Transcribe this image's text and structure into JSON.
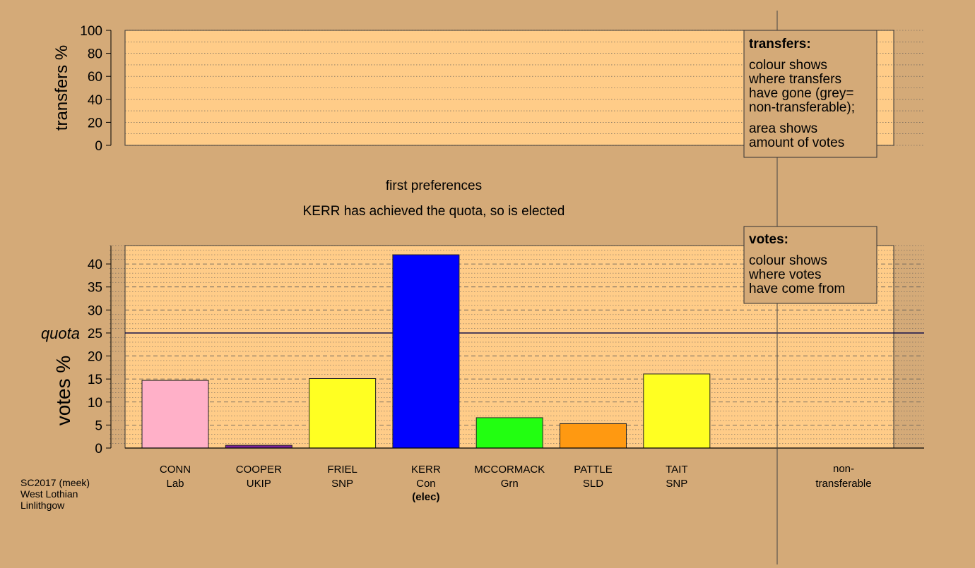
{
  "chart_data": {
    "type": "bar",
    "title": "first preferences",
    "subtitle": "KERR has achieved the quota, so is elected",
    "colors": {
      "background": "#d4aa78",
      "plot_fill": "#ffcc88",
      "grid": "#555555",
      "quota_line": "#000044",
      "divider": "#444444"
    },
    "transfers_panel": {
      "ylabel": "transfers %",
      "ylim": [
        0,
        100
      ],
      "yticks": [
        0,
        20,
        40,
        60,
        80,
        100
      ],
      "legend": {
        "title": "transfers:",
        "lines1": [
          "colour shows",
          "where transfers",
          "have gone (grey=",
          "non-transferable);"
        ],
        "lines2": [
          "area shows",
          "amount of votes"
        ]
      }
    },
    "votes_panel": {
      "ylabel": "votes %",
      "ylim": [
        0,
        44
      ],
      "yticks": [
        0,
        5,
        10,
        15,
        20,
        25,
        30,
        35,
        40
      ],
      "quota": 25,
      "quota_label": "quota",
      "legend": {
        "title": "votes:",
        "lines": [
          "colour shows",
          "where votes",
          "have come from"
        ]
      }
    },
    "candidates": [
      {
        "name": "CONN",
        "party": "Lab",
        "value": 14.7,
        "color": "#ffb0c8",
        "status": ""
      },
      {
        "name": "COOPER",
        "party": "UKIP",
        "value": 0.6,
        "color": "#7a2299",
        "status": ""
      },
      {
        "name": "FRIEL",
        "party": "SNP",
        "value": 15.1,
        "color": "#ffff22",
        "status": ""
      },
      {
        "name": "KERR",
        "party": "Con",
        "value": 42,
        "color": "#0000ff",
        "status": "(elec)"
      },
      {
        "name": "MCCORMACK",
        "party": "Grn",
        "value": 6.6,
        "color": "#22ff11",
        "status": ""
      },
      {
        "name": "PATTLE",
        "party": "SLD",
        "value": 5.3,
        "color": "#ff9911",
        "status": ""
      },
      {
        "name": "TAIT",
        "party": "SNP",
        "value": 16.1,
        "color": "#ffff22",
        "status": ""
      }
    ],
    "nontransferable_label": [
      "non-",
      "transferable"
    ],
    "source_lines": [
      "SC2017 (meek)",
      "West Lothian",
      "Linlithgow"
    ]
  }
}
